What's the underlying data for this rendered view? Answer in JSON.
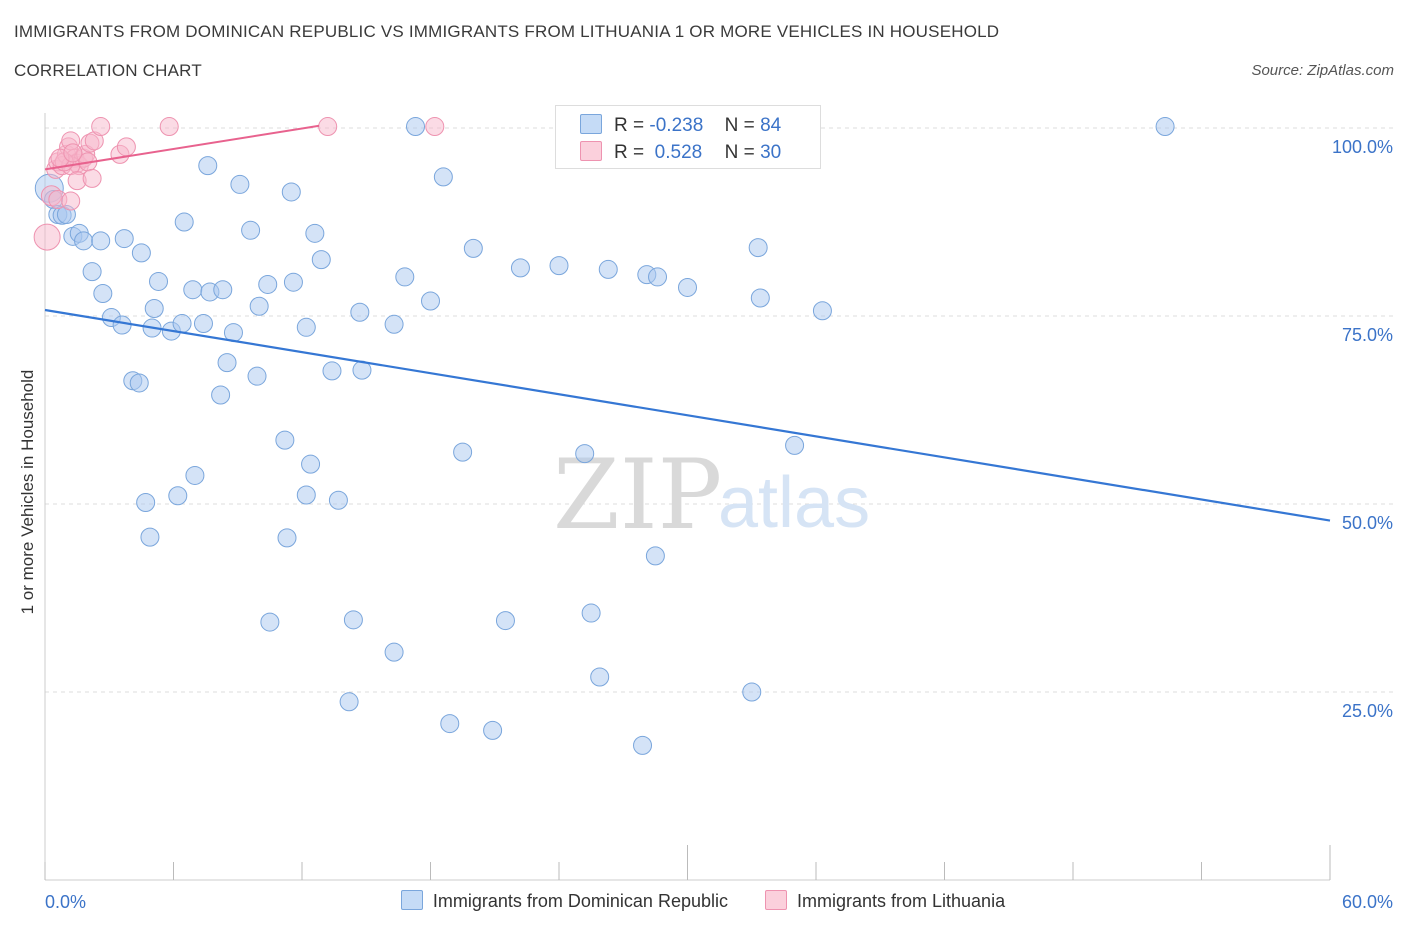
{
  "header": {
    "title": "IMMIGRANTS FROM DOMINICAN REPUBLIC VS IMMIGRANTS FROM LITHUANIA 1 OR MORE VEHICLES IN HOUSEHOLD",
    "subtitle": "CORRELATION CHART",
    "source": "Source: ZipAtlas.com"
  },
  "legend": {
    "series1": {
      "r_label": "R =",
      "r_value": "-0.238",
      "n_label": "N =",
      "n_value": "84"
    },
    "series2": {
      "r_label": "R =",
      "r_value": " 0.528",
      "n_label": "N =",
      "n_value": "30"
    }
  },
  "watermark": {
    "zip": "ZIP",
    "atlas": "atlas"
  },
  "colors": {
    "blue_fill": "#aac8f0",
    "blue_stroke": "#7aa6dc",
    "blue_line": "#3577d4",
    "pink_fill": "#f7b8cb",
    "pink_stroke": "#ee93b0",
    "pink_line": "#e8628e",
    "axis_text": "#3b73c8",
    "grid": "#dddddd"
  },
  "chart_data": {
    "type": "scatter",
    "title": "IMMIGRANTS FROM DOMINICAN REPUBLIC VS IMMIGRANTS FROM LITHUANIA 1 OR MORE VEHICLES IN HOUSEHOLD",
    "xlabel": "",
    "ylabel": "1 or more Vehicles in Household",
    "xlim": [
      0,
      60
    ],
    "ylim": [
      0,
      102
    ],
    "x_tick_labels": [
      "0.0%",
      "60.0%"
    ],
    "y_ticks": [
      25,
      50,
      75,
      100
    ],
    "y_tick_labels": [
      "25.0%",
      "50.0%",
      "75.0%",
      "100.0%"
    ],
    "series": [
      {
        "name": "Immigrants from Dominican Republic",
        "color": "blue",
        "trend": {
          "x": [
            0,
            60
          ],
          "y": [
            75.8,
            47.8
          ]
        },
        "points": [
          [
            0.2,
            92,
            14
          ],
          [
            0.4,
            90.5,
            9
          ],
          [
            0.6,
            88.5,
            9
          ],
          [
            0.8,
            88.4,
            9
          ],
          [
            1.0,
            88.5,
            9
          ],
          [
            1.3,
            85.6,
            9
          ],
          [
            1.6,
            86.0,
            9
          ],
          [
            1.8,
            85.0,
            9
          ],
          [
            2.6,
            85.0,
            9
          ],
          [
            3.7,
            85.3,
            9
          ],
          [
            2.2,
            80.9,
            9
          ],
          [
            2.7,
            78.0,
            9
          ],
          [
            3.1,
            74.8,
            9
          ],
          [
            3.6,
            73.8,
            9
          ],
          [
            4.5,
            83.4,
            9
          ],
          [
            5.1,
            76.0,
            9
          ],
          [
            5.3,
            79.6,
            9
          ],
          [
            5.0,
            73.4,
            9
          ],
          [
            5.9,
            73.0,
            9
          ],
          [
            6.4,
            74.0,
            9
          ],
          [
            6.9,
            78.5,
            9
          ],
          [
            7.7,
            78.2,
            9
          ],
          [
            8.3,
            78.5,
            9
          ],
          [
            7.4,
            74.0,
            9
          ],
          [
            8.8,
            72.8,
            9
          ],
          [
            6.5,
            87.5,
            9
          ],
          [
            7.6,
            95.0,
            9
          ],
          [
            9.1,
            92.5,
            9
          ],
          [
            9.6,
            86.4,
            9
          ],
          [
            10.0,
            76.3,
            9
          ],
          [
            10.4,
            79.2,
            9
          ],
          [
            11.6,
            79.5,
            9
          ],
          [
            11.5,
            91.5,
            9
          ],
          [
            12.2,
            73.5,
            9
          ],
          [
            12.6,
            86.0,
            9
          ],
          [
            12.9,
            82.5,
            9
          ],
          [
            13.4,
            67.7,
            9
          ],
          [
            14.7,
            75.5,
            9
          ],
          [
            14.8,
            67.8,
            9
          ],
          [
            16.3,
            73.9,
            9
          ],
          [
            16.8,
            80.2,
            9
          ],
          [
            17.3,
            100.2,
            9
          ],
          [
            18.0,
            77.0,
            9
          ],
          [
            18.6,
            93.5,
            9
          ],
          [
            20.0,
            84.0,
            9
          ],
          [
            22.2,
            81.4,
            9
          ],
          [
            24.0,
            81.7,
            9
          ],
          [
            26.3,
            81.2,
            9
          ],
          [
            28.1,
            80.5,
            9
          ],
          [
            28.6,
            80.2,
            9
          ],
          [
            30.0,
            78.8,
            9
          ],
          [
            33.3,
            84.1,
            9
          ],
          [
            33.4,
            77.4,
            9
          ],
          [
            36.3,
            75.7,
            9
          ],
          [
            52.3,
            100.2,
            9
          ],
          [
            4.1,
            66.4,
            9
          ],
          [
            4.4,
            66.1,
            9
          ],
          [
            8.5,
            68.8,
            9
          ],
          [
            8.2,
            64.5,
            9
          ],
          [
            9.9,
            67.0,
            9
          ],
          [
            11.2,
            58.5,
            9
          ],
          [
            12.4,
            55.3,
            9
          ],
          [
            12.2,
            51.2,
            9
          ],
          [
            13.7,
            50.5,
            9
          ],
          [
            19.5,
            56.9,
            9
          ],
          [
            25.2,
            56.7,
            9
          ],
          [
            35.0,
            57.8,
            9
          ],
          [
            7.0,
            53.8,
            9
          ],
          [
            6.2,
            51.1,
            9
          ],
          [
            4.7,
            50.2,
            9
          ],
          [
            4.9,
            45.6,
            9
          ],
          [
            11.3,
            45.5,
            9
          ],
          [
            28.5,
            43.1,
            9
          ],
          [
            10.5,
            34.3,
            9
          ],
          [
            14.4,
            34.6,
            9
          ],
          [
            21.5,
            34.5,
            9
          ],
          [
            25.5,
            35.5,
            9
          ],
          [
            16.3,
            30.3,
            9
          ],
          [
            25.9,
            27.0,
            9
          ],
          [
            33.0,
            25.0,
            9
          ],
          [
            14.2,
            23.7,
            9
          ],
          [
            18.9,
            20.8,
            9
          ],
          [
            20.9,
            19.9,
            9
          ],
          [
            27.9,
            17.9,
            9
          ]
        ]
      },
      {
        "name": "Immigrants from Lithuania",
        "color": "pink",
        "trend": {
          "x": [
            0,
            12.8
          ],
          "y": [
            94.5,
            100.3
          ]
        },
        "points": [
          [
            0.1,
            85.5,
            13
          ],
          [
            0.3,
            91.0,
            10
          ],
          [
            0.5,
            94.5,
            9
          ],
          [
            0.6,
            95.5,
            9
          ],
          [
            0.8,
            95.0,
            9
          ],
          [
            1.0,
            96.5,
            9
          ],
          [
            1.1,
            97.5,
            9
          ],
          [
            1.2,
            98.3,
            9
          ],
          [
            1.4,
            96.0,
            9
          ],
          [
            1.5,
            95.3,
            9
          ],
          [
            1.6,
            95.0,
            9
          ],
          [
            1.8,
            96.0,
            9
          ],
          [
            1.9,
            96.5,
            9
          ],
          [
            2.0,
            95.5,
            9
          ],
          [
            1.2,
            95.0,
            9
          ],
          [
            0.9,
            95.5,
            9
          ],
          [
            1.5,
            93.0,
            9
          ],
          [
            2.2,
            93.3,
            9
          ],
          [
            2.1,
            98.0,
            9
          ],
          [
            2.3,
            98.3,
            9
          ],
          [
            2.6,
            100.2,
            9
          ],
          [
            3.5,
            96.5,
            9
          ],
          [
            3.8,
            97.5,
            9
          ],
          [
            5.8,
            100.2,
            9
          ],
          [
            0.7,
            96.0,
            9
          ],
          [
            1.3,
            96.7,
            9
          ],
          [
            0.6,
            90.5,
            9
          ],
          [
            1.2,
            90.3,
            9
          ],
          [
            13.2,
            100.2,
            9
          ],
          [
            18.2,
            100.2,
            9
          ]
        ]
      }
    ]
  }
}
